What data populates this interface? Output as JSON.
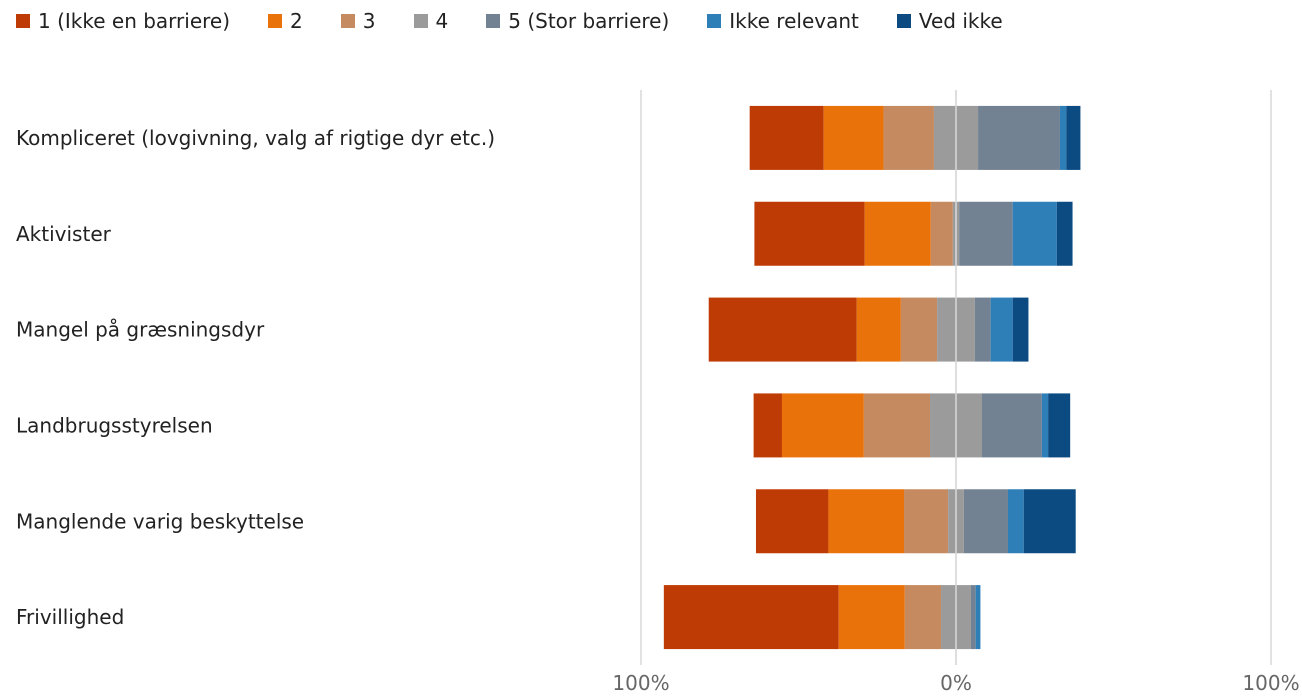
{
  "chart_data": {
    "type": "bar",
    "orientation": "horizontal",
    "stacking": "diverging",
    "categories": [
      "Kompliceret (lovgivning, valg af rigtige dyr etc.)",
      "Aktivister",
      "Mangel på græsningsdyr",
      "Landbrugsstyrelsen",
      "Manglende varig beskyttelse",
      "Frivillighed"
    ],
    "series": [
      {
        "name": "1 (Ikke en barriere)",
        "color": "#BF3B05",
        "values": [
          23.5,
          35.0,
          47.0,
          9.0,
          23.0,
          55.5
        ]
      },
      {
        "name": "2",
        "color": "#EA720A",
        "values": [
          19.0,
          21.0,
          14.0,
          26.0,
          24.0,
          21.0
        ]
      },
      {
        "name": "3",
        "color": "#C58A60",
        "values": [
          16.0,
          7.0,
          11.5,
          21.0,
          14.0,
          11.5
        ]
      },
      {
        "name": "4",
        "color": "#9B9B9B",
        "values": [
          14.0,
          2.0,
          12.0,
          16.5,
          5.0,
          9.5
        ]
      },
      {
        "name": "5 (Stor barriere)",
        "color": "#738292",
        "values": [
          26.0,
          17.0,
          5.0,
          19.0,
          14.0,
          1.5
        ]
      },
      {
        "name": "Ikke relevant",
        "color": "#2E7EB8",
        "values": [
          2.0,
          14.0,
          7.0,
          2.0,
          5.0,
          1.5
        ]
      },
      {
        "name": "Ved ikke",
        "color": "#0B4B82",
        "values": [
          4.5,
          5.0,
          5.0,
          7.0,
          16.5,
          0.0
        ]
      }
    ],
    "xlim": [
      -100,
      100
    ],
    "x_tick_labels": [
      "100%",
      "0%",
      "100%"
    ],
    "grid": true,
    "legend_position": "top-left"
  }
}
